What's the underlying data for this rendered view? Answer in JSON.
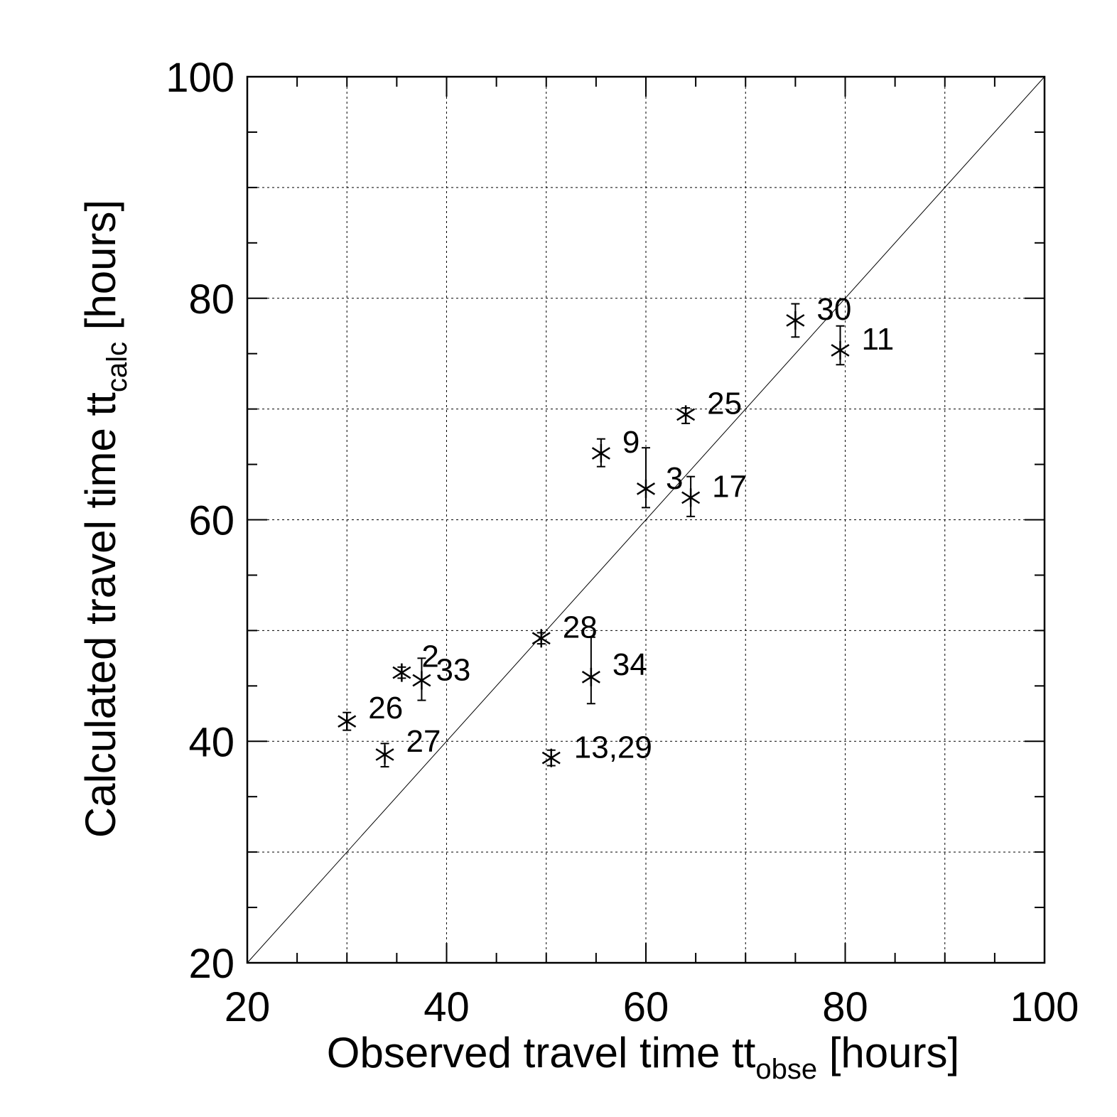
{
  "chart_data": {
    "type": "scatter",
    "xlabel": {
      "main": "Observed travel time tt",
      "subscript": "obse",
      "suffix": " [hours]"
    },
    "ylabel": {
      "main": "Calculated travel time tt",
      "subscript": "calc",
      "suffix": " [hours]"
    },
    "xlim": [
      20,
      100
    ],
    "ylim": [
      20,
      100
    ],
    "x_ticks": [
      20,
      40,
      60,
      80,
      100
    ],
    "y_ticks": [
      20,
      40,
      60,
      80,
      100
    ],
    "x_tick_labels": [
      "20",
      "40",
      "60",
      "80",
      "100"
    ],
    "y_tick_labels": [
      "20",
      "40",
      "60",
      "80",
      "100"
    ],
    "grid": true,
    "reference_line": "y = x",
    "marker": "asterisk",
    "points": [
      {
        "label": "30",
        "x": 75.0,
        "y": 78.0,
        "err_low": 1.5,
        "err_high": 1.5
      },
      {
        "label": "11",
        "x": 79.5,
        "y": 75.3,
        "err_low": 1.3,
        "err_high": 2.2
      },
      {
        "label": "25",
        "x": 64.0,
        "y": 69.5,
        "err_low": 0.8,
        "err_high": 0.6
      },
      {
        "label": "9",
        "x": 55.5,
        "y": 66.0,
        "err_low": 1.2,
        "err_high": 1.3
      },
      {
        "label": "3",
        "x": 60.0,
        "y": 62.8,
        "err_low": 1.7,
        "err_high": 3.7
      },
      {
        "label": "17",
        "x": 64.5,
        "y": 62.0,
        "err_low": 1.7,
        "err_high": 1.9
      },
      {
        "label": "28",
        "x": 49.5,
        "y": 49.3,
        "err_low": 0.5,
        "err_high": 0.5
      },
      {
        "label": "34",
        "x": 54.5,
        "y": 45.8,
        "err_low": 2.4,
        "err_high": 3.6
      },
      {
        "label": "2",
        "x": 35.5,
        "y": 46.2,
        "err_low": 0.5,
        "err_high": 0.5
      },
      {
        "label": "33",
        "x": 37.5,
        "y": 45.5,
        "err_low": 1.8,
        "err_high": 2.0
      },
      {
        "label": "26",
        "x": 30.0,
        "y": 41.8,
        "err_low": 0.8,
        "err_high": 0.8
      },
      {
        "label": "27",
        "x": 33.8,
        "y": 38.8,
        "err_low": 1.1,
        "err_high": 1.0
      },
      {
        "label": "13,29",
        "x": 50.5,
        "y": 38.5,
        "err_low": 0.7,
        "err_high": 0.7
      }
    ]
  }
}
